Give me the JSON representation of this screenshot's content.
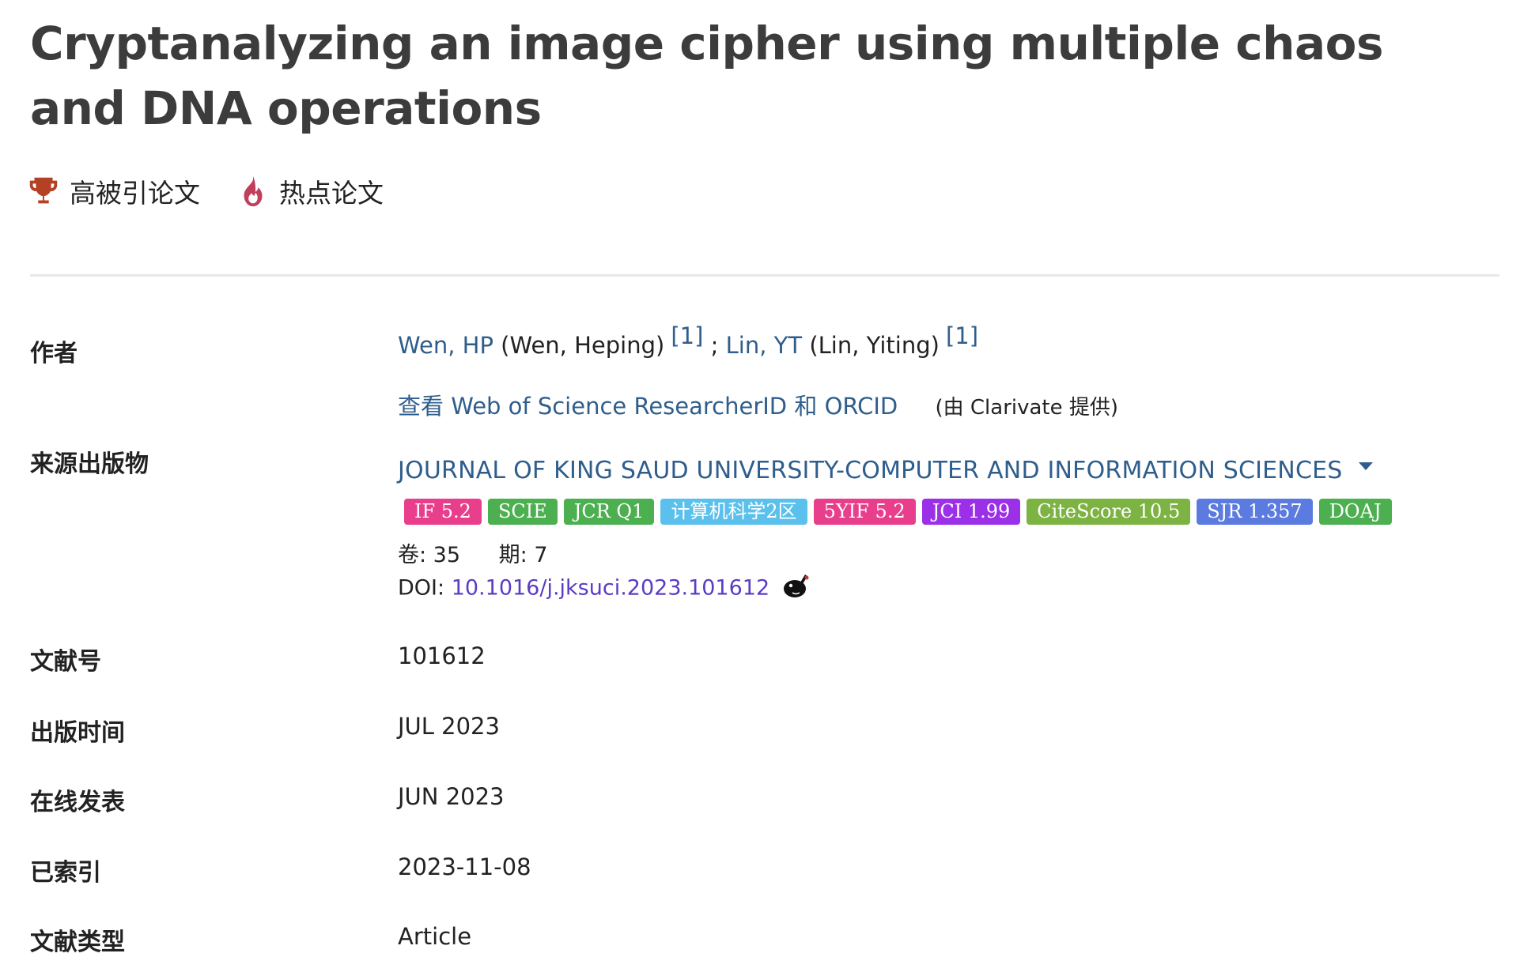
{
  "title": "Cryptanalyzing an image cipher using multiple chaos and DNA operations",
  "highlights": [
    {
      "label": "高被引论文",
      "icon": "trophy-icon",
      "color": "#b44125"
    },
    {
      "label": "热点论文",
      "icon": "flame-icon",
      "color": "#c03f5a"
    }
  ],
  "labels": {
    "authors": "作者",
    "source": "来源出版物",
    "article_number": "文献号",
    "published": "出版时间",
    "early_access": "在线发表",
    "indexed": "已索引",
    "doc_type": "文献类型"
  },
  "authors": [
    {
      "short": "Wen, HP",
      "full": "(Wen, Heping)",
      "affil": "[1]"
    },
    {
      "short": "Lin, YT",
      "full": "(Lin, Yiting)",
      "affil": "[1]"
    }
  ],
  "author_separator": ";",
  "researcher_link": "查看 Web of Science ResearcherID 和 ORCID",
  "researcher_provider": "(由 Clarivate 提供)",
  "journal": "JOURNAL OF KING SAUD UNIVERSITY-COMPUTER AND INFORMATION SCIENCES",
  "metrics": [
    {
      "label": "IF 5.2",
      "color": "#e83e8c"
    },
    {
      "label": "SCIE",
      "color": "#4caf50"
    },
    {
      "label": "JCR Q1",
      "color": "#4caf50"
    },
    {
      "label": "计算机科学2区",
      "color": "#5bc0eb"
    },
    {
      "label": "5YIF 5.2",
      "color": "#e83e8c"
    },
    {
      "label": "JCI 1.99",
      "color": "#9b30e8"
    },
    {
      "label": "CiteScore 10.5",
      "color": "#7cb342"
    },
    {
      "label": "SJR 1.357",
      "color": "#5b7be0"
    },
    {
      "label": "DOAJ",
      "color": "#4caf50"
    }
  ],
  "volume": "卷: 35",
  "issue": "期: 7",
  "doi_label": "DOI:",
  "doi": "10.1016/j.jksuci.2023.101612",
  "article_number": "101612",
  "published": "JUL 2023",
  "early_access": "JUN 2023",
  "indexed": "2023-11-08",
  "doc_type": "Article"
}
